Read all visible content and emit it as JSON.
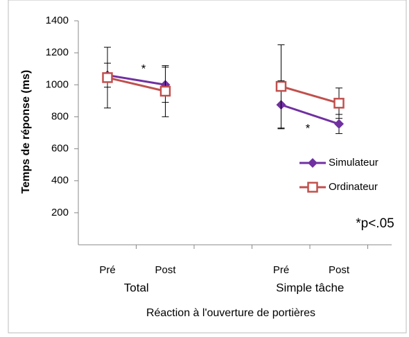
{
  "chart_data": {
    "type": "line",
    "y_label": "Temps de réponse (ms)",
    "x_label": "Réaction à l'ouverture de portières",
    "categories": [
      "Pré",
      "Post",
      null,
      "Pré",
      "Post"
    ],
    "groups": [
      "Total",
      "Simple tâche"
    ],
    "series": [
      {
        "name": "Simulateur",
        "color": "#7030a0",
        "marker": "diamond",
        "values": [
          1060,
          1000,
          null,
          875,
          755
        ],
        "errors": [
          75,
          110,
          null,
          150,
          60
        ]
      },
      {
        "name": "Ordinateur",
        "color": "#c0504d",
        "marker": "square",
        "values": [
          1045,
          960,
          null,
          990,
          885
        ],
        "errors": [
          190,
          160,
          null,
          260,
          95
        ]
      }
    ],
    "annotations": [
      "*",
      "*",
      "*p<.05"
    ],
    "ylim": [
      0,
      1400
    ],
    "yticks": [
      200,
      400,
      600,
      800,
      1000,
      1200,
      1400
    ],
    "grid": false
  }
}
